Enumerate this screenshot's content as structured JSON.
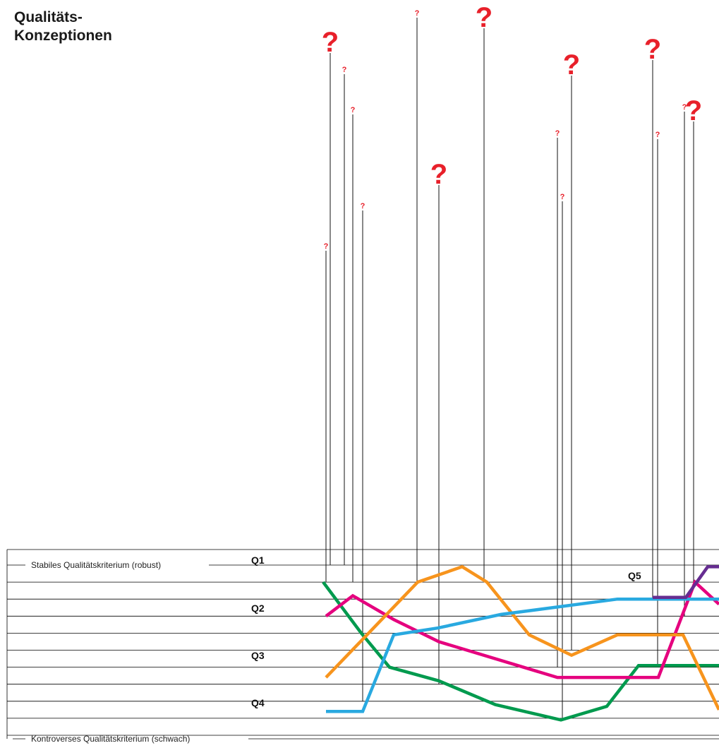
{
  "title": {
    "line1": "Qualitäts-",
    "line2": "Konzeptionen"
  },
  "colors": {
    "question": "#e8202a",
    "Q1": "#009a4e",
    "Q2": "#e5007e",
    "Q3": "#f7941d",
    "Q4": "#29a9e0",
    "Q5": "#662d91",
    "grid": "#000000"
  },
  "chart_data": {
    "type": "line",
    "y_levels": 12,
    "top_label": "Stabiles Qualitätskriterium (robust)",
    "bottom_label": "Kontroverses Qualitätskriterium (schwach)",
    "series": [
      {
        "name": "Q1",
        "level": 1,
        "points": [
          [
            458,
            1
          ],
          [
            512,
            4
          ],
          [
            552,
            6
          ],
          [
            622,
            6.8
          ],
          [
            702,
            8.2
          ],
          [
            795,
            9.1
          ],
          [
            860,
            8.3
          ],
          [
            905,
            5.9
          ],
          [
            1019,
            5.9
          ]
        ]
      },
      {
        "name": "Q2",
        "level": 3,
        "points": [
          [
            462,
            3
          ],
          [
            500,
            1.8
          ],
          [
            558,
            3.2
          ],
          [
            622,
            4.5
          ],
          [
            790,
            6.6
          ],
          [
            933,
            6.6
          ],
          [
            985,
            1
          ],
          [
            1019,
            2.3
          ]
        ]
      },
      {
        "name": "Q3",
        "level": 6,
        "points": [
          [
            462,
            6.6
          ],
          [
            592,
            1
          ],
          [
            655,
            0.1
          ],
          [
            690,
            1
          ],
          [
            750,
            4.1
          ],
          [
            810,
            5.3
          ],
          [
            875,
            4.1
          ],
          [
            968,
            4.1
          ],
          [
            1019,
            8.5
          ]
        ]
      },
      {
        "name": "Q4",
        "level": 8,
        "points": [
          [
            462,
            8.6
          ],
          [
            514,
            8.6
          ],
          [
            558,
            4.1
          ],
          [
            620,
            3.7
          ],
          [
            710,
            2.9
          ],
          [
            875,
            2
          ],
          [
            1019,
            2
          ]
        ]
      },
      {
        "name": "Q5",
        "level": 0,
        "points": [
          [
            925,
            1.9
          ],
          [
            972,
            1.9
          ],
          [
            1003,
            0.1
          ],
          [
            1019,
            0.1
          ]
        ]
      }
    ],
    "question_marks": [
      {
        "x": 462,
        "end_level": 1,
        "size": "small"
      },
      {
        "x": 468,
        "end_level": 0,
        "size": "big"
      },
      {
        "x": 488,
        "end_level": 0,
        "size": "small"
      },
      {
        "x": 500,
        "end_level": 1,
        "size": "small"
      },
      {
        "x": 514,
        "end_level": 8,
        "size": "small"
      },
      {
        "x": 591,
        "end_level": 1,
        "size": "small"
      },
      {
        "x": 622,
        "end_level": 7,
        "size": "big"
      },
      {
        "x": 686,
        "end_level": 1,
        "size": "big"
      },
      {
        "x": 790,
        "end_level": 6,
        "size": "small"
      },
      {
        "x": 797,
        "end_level": 9,
        "size": "small"
      },
      {
        "x": 810,
        "end_level": 5,
        "size": "big"
      },
      {
        "x": 925,
        "end_level": 2,
        "size": "big"
      },
      {
        "x": 932,
        "end_level": 6,
        "size": "small"
      },
      {
        "x": 970,
        "end_level": 3,
        "size": "small"
      },
      {
        "x": 983,
        "end_level": 1,
        "size": "big"
      }
    ]
  }
}
